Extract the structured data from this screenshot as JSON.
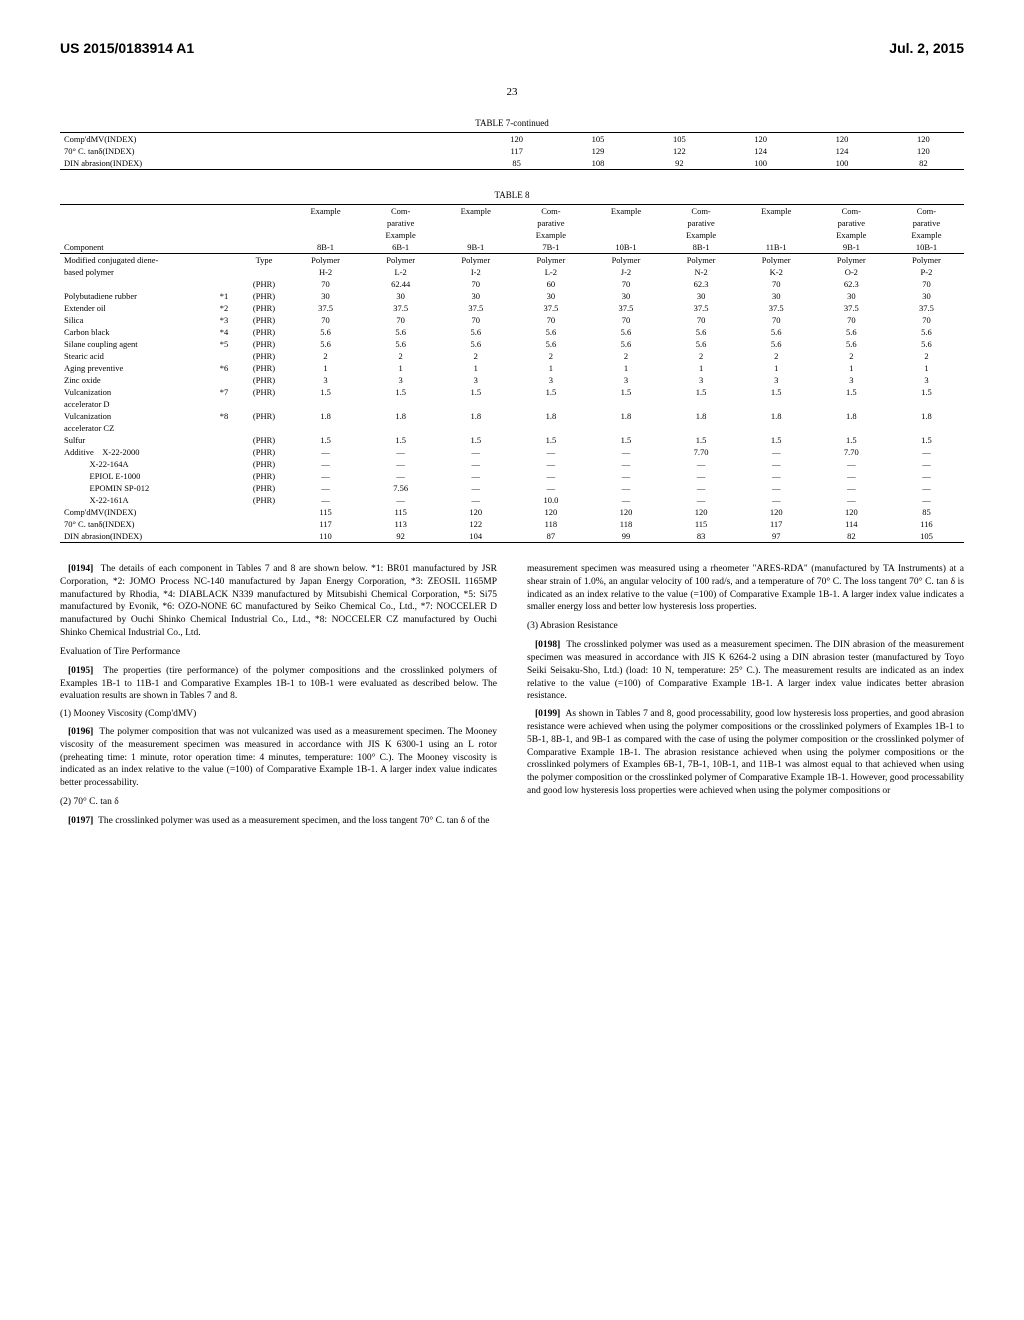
{
  "header": {
    "patent_no": "US 2015/0183914 A1",
    "date": "Jul. 2, 2015",
    "page_num": "23"
  },
  "table7": {
    "title": "TABLE 7-continued",
    "rows": [
      {
        "label": "Comp'dMV(INDEX)",
        "v": [
          "120",
          "105",
          "105",
          "120",
          "120",
          "120"
        ]
      },
      {
        "label": "70° C. tanδ(INDEX)",
        "v": [
          "117",
          "129",
          "122",
          "124",
          "124",
          "120"
        ]
      },
      {
        "label": "DIN abrasion(INDEX)",
        "v": [
          "85",
          "108",
          "92",
          "100",
          "100",
          "82"
        ]
      }
    ]
  },
  "table8": {
    "title": "TABLE 8",
    "headers_top": [
      "",
      "",
      "",
      "Example",
      "Com-",
      "Example",
      "Com-",
      "Example",
      "Com-",
      "Example",
      "Com-",
      "Com-"
    ],
    "headers_mid": [
      "",
      "",
      "",
      "",
      "parative",
      "",
      "parative",
      "",
      "parative",
      "",
      "parative",
      "parative"
    ],
    "headers_mid2": [
      "",
      "",
      "",
      "",
      "Example",
      "",
      "Example",
      "",
      "Example",
      "",
      "Example",
      "Example"
    ],
    "headers": [
      "Component",
      "",
      "",
      "8B-1",
      "6B-1",
      "9B-1",
      "7B-1",
      "10B-1",
      "8B-1",
      "11B-1",
      "9B-1",
      "10B-1"
    ],
    "rows": [
      [
        "Modified conjugated diene-",
        "",
        "Type",
        "Polymer",
        "Polymer",
        "Polymer",
        "Polymer",
        "Polymer",
        "Polymer",
        "Polymer",
        "Polymer",
        "Polymer"
      ],
      [
        "based polymer",
        "",
        "",
        "H-2",
        "L-2",
        "I-2",
        "L-2",
        "J-2",
        "N-2",
        "K-2",
        "O-2",
        "P-2"
      ],
      [
        "",
        "",
        "(PHR)",
        "70",
        "62.44",
        "70",
        "60",
        "70",
        "62.3",
        "70",
        "62.3",
        "70"
      ],
      [
        "Polybutadiene rubber",
        "*1",
        "(PHR)",
        "30",
        "30",
        "30",
        "30",
        "30",
        "30",
        "30",
        "30",
        "30"
      ],
      [
        "Extender oil",
        "*2",
        "(PHR)",
        "37.5",
        "37.5",
        "37.5",
        "37.5",
        "37.5",
        "37.5",
        "37.5",
        "37.5",
        "37.5"
      ],
      [
        "Silica",
        "*3",
        "(PHR)",
        "70",
        "70",
        "70",
        "70",
        "70",
        "70",
        "70",
        "70",
        "70"
      ],
      [
        "Carbon black",
        "*4",
        "(PHR)",
        "5.6",
        "5.6",
        "5.6",
        "5.6",
        "5.6",
        "5.6",
        "5.6",
        "5.6",
        "5.6"
      ],
      [
        "Silane coupling agent",
        "*5",
        "(PHR)",
        "5.6",
        "5.6",
        "5.6",
        "5.6",
        "5.6",
        "5.6",
        "5.6",
        "5.6",
        "5.6"
      ],
      [
        "Stearic acid",
        "",
        "(PHR)",
        "2",
        "2",
        "2",
        "2",
        "2",
        "2",
        "2",
        "2",
        "2"
      ],
      [
        "Aging preventive",
        "*6",
        "(PHR)",
        "1",
        "1",
        "1",
        "1",
        "1",
        "1",
        "1",
        "1",
        "1"
      ],
      [
        "Zinc oxide",
        "",
        "(PHR)",
        "3",
        "3",
        "3",
        "3",
        "3",
        "3",
        "3",
        "3",
        "3"
      ],
      [
        "Vulcanization",
        "*7",
        "(PHR)",
        "1.5",
        "1.5",
        "1.5",
        "1.5",
        "1.5",
        "1.5",
        "1.5",
        "1.5",
        "1.5"
      ],
      [
        "accelerator D",
        "",
        "",
        "",
        "",
        "",
        "",
        "",
        "",
        "",
        "",
        ""
      ],
      [
        "Vulcanization",
        "*8",
        "(PHR)",
        "1.8",
        "1.8",
        "1.8",
        "1.8",
        "1.8",
        "1.8",
        "1.8",
        "1.8",
        "1.8"
      ],
      [
        "accelerator CZ",
        "",
        "",
        "",
        "",
        "",
        "",
        "",
        "",
        "",
        "",
        ""
      ],
      [
        "Sulfur",
        "",
        "(PHR)",
        "1.5",
        "1.5",
        "1.5",
        "1.5",
        "1.5",
        "1.5",
        "1.5",
        "1.5",
        "1.5"
      ],
      [
        "Additive    X-22-2000",
        "",
        "(PHR)",
        "—",
        "—",
        "—",
        "—",
        "—",
        "7.70",
        "—",
        "7.70",
        "—"
      ],
      [
        "            X-22-164A",
        "",
        "(PHR)",
        "—",
        "—",
        "—",
        "—",
        "—",
        "—",
        "—",
        "—",
        "—"
      ],
      [
        "            EPIOL E-1000",
        "",
        "(PHR)",
        "—",
        "—",
        "—",
        "—",
        "—",
        "—",
        "—",
        "—",
        "—"
      ],
      [
        "            EPOMIN SP-012",
        "",
        "(PHR)",
        "—",
        "7.56",
        "—",
        "—",
        "—",
        "—",
        "—",
        "—",
        "—"
      ],
      [
        "            X-22-161A",
        "",
        "(PHR)",
        "—",
        "—",
        "—",
        "10.0",
        "—",
        "—",
        "—",
        "—",
        "—"
      ],
      [
        "Comp'dMV(INDEX)",
        "",
        "",
        "115",
        "115",
        "120",
        "120",
        "120",
        "120",
        "120",
        "120",
        "85"
      ],
      [
        "70° C. tanδ(INDEX)",
        "",
        "",
        "117",
        "113",
        "122",
        "118",
        "118",
        "115",
        "117",
        "114",
        "116"
      ],
      [
        "DIN abrasion(INDEX)",
        "",
        "",
        "110",
        "92",
        "104",
        "87",
        "99",
        "83",
        "97",
        "82",
        "105"
      ]
    ]
  },
  "body": {
    "p0194": "The details of each component in Tables 7 and 8 are shown below. *1: BR01 manufactured by JSR Corporation, *2: JOMO Process NC-140 manufactured by Japan Energy Corporation, *3: ZEOSIL 1165MP manufactured by Rhodia, *4: DIABLACK N339 manufactured by Mitsubishi Chemical Corporation, *5: Si75 manufactured by Evonik, *6: OZO-NONE 6C manufactured by Seiko Chemical Co., Ltd., *7: NOCCELER D manufactured by Ouchi Shinko Chemical Industrial Co., Ltd., *8: NOCCELER CZ manufactured by Ouchi Shinko Chemical Industrial Co., Ltd.",
    "eval_title": "Evaluation of Tire Performance",
    "p0195": "The properties (tire performance) of the polymer compositions and the crosslinked polymers of Examples 1B-1 to 11B-1 and Comparative Examples 1B-1 to 10B-1 were evaluated as described below. The evaluation results are shown in Tables 7 and 8.",
    "sec1": "(1) Mooney Viscosity (Comp'dMV)",
    "p0196": "The polymer composition that was not vulcanized was used as a measurement specimen. The Mooney viscosity of the measurement specimen was measured in accordance with JIS K 6300-1 using an L rotor (preheating time: 1 minute, rotor operation time: 4 minutes, temperature: 100° C.). The Mooney viscosity is indicated as an index relative to the value (=100) of Comparative Example 1B-1. A larger index value indicates better processability.",
    "sec2": "(2) 70° C. tan δ",
    "p0197": "The crosslinked polymer was used as a measurement specimen, and the loss tangent 70° C. tan δ of the",
    "col2_top": "measurement specimen was measured using a rheometer \"ARES-RDA\" (manufactured by TA Instruments) at a shear strain of 1.0%, an angular velocity of 100 rad/s, and a temperature of 70° C. The loss tangent 70° C. tan δ is indicated as an index relative to the value (=100) of Comparative Example 1B-1. A larger index value indicates a smaller energy loss and better low hysteresis loss properties.",
    "sec3": "(3) Abrasion Resistance",
    "p0198": "The crosslinked polymer was used as a measurement specimen. The DIN abrasion of the measurement specimen was measured in accordance with JIS K 6264-2 using a DIN abrasion tester (manufactured by Toyo Seiki Seisaku-Sho, Ltd.) (load: 10 N, temperature: 25° C.). The measurement results are indicated as an index relative to the value (=100) of Comparative Example 1B-1. A larger index value indicates better abrasion resistance.",
    "p0199": "As shown in Tables 7 and 8, good processability, good low hysteresis loss properties, and good abrasion resistance were achieved when using the polymer compositions or the crosslinked polymers of Examples 1B-1 to 5B-1, 8B-1, and 9B-1 as compared with the case of using the polymer composition or the crosslinked polymer of Comparative Example 1B-1. The abrasion resistance achieved when using the polymer compositions or the crosslinked polymers of Examples 6B-1, 7B-1, 10B-1, and 11B-1 was almost equal to that achieved when using the polymer composition or the crosslinked polymer of Comparative Example 1B-1. However, good processability and good low hysteresis loss properties were achieved when using the polymer compositions or"
  }
}
